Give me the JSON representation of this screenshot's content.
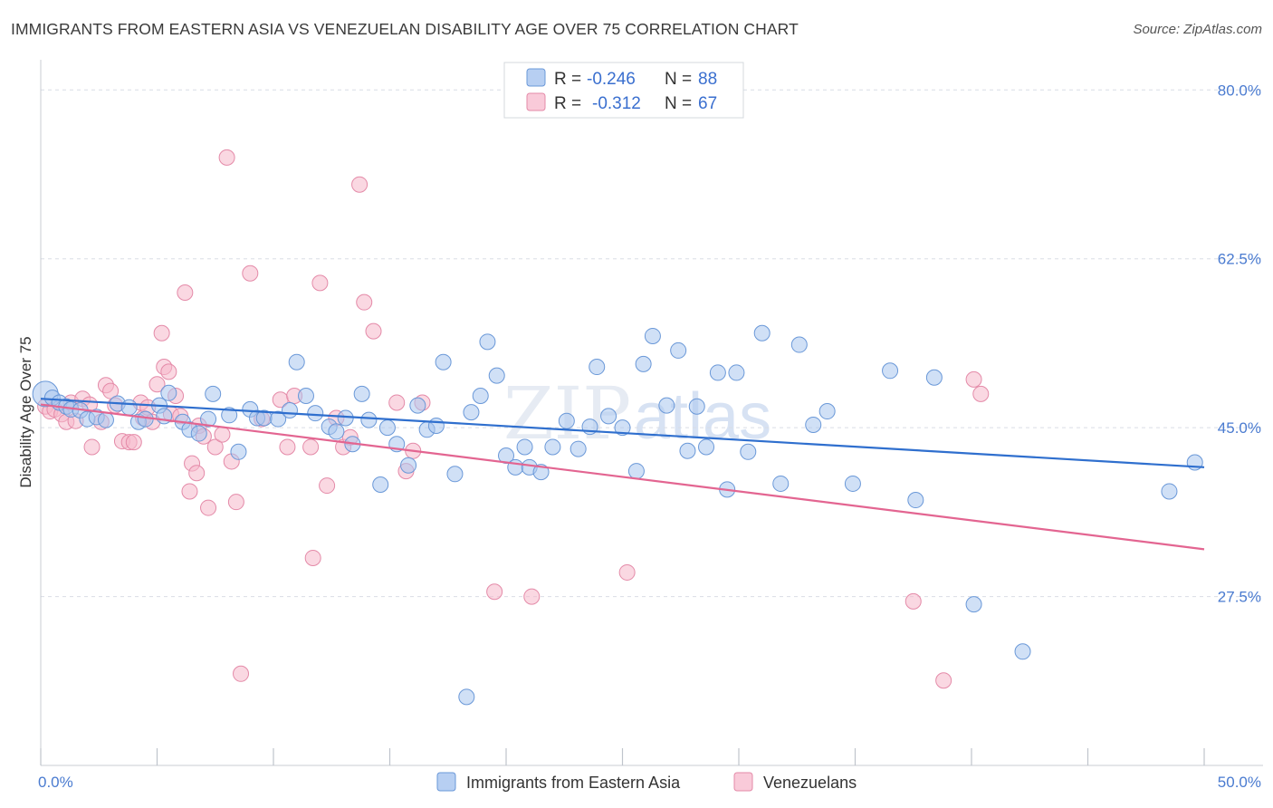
{
  "title": "IMMIGRANTS FROM EASTERN ASIA VS VENEZUELAN DISABILITY AGE OVER 75 CORRELATION CHART",
  "source": "Source: ZipAtlas.com",
  "watermark": {
    "zip": "ZIP",
    "atlas": "atlas"
  },
  "legend": {
    "r_label": "R =",
    "n_label": "N =",
    "series1": {
      "r": "-0.246",
      "n": "88"
    },
    "series2": {
      "r": "-0.312",
      "n": "67"
    }
  },
  "colors": {
    "blue_fill": "#a9c6ee",
    "blue_stroke": "#6a98d8",
    "blue_line": "#2f6fce",
    "pink_fill": "#f6b8cb",
    "pink_stroke": "#e48aa8",
    "pink_line": "#e36591",
    "grid": "#d9dde5",
    "tick_text": "#4a7bd0"
  },
  "chart_data": {
    "type": "scatter",
    "title": "IMMIGRANTS FROM EASTERN ASIA VS VENEZUELAN DISABILITY AGE OVER 75 CORRELATION CHART",
    "xlabel": "",
    "ylabel": "Disability Age Over 75",
    "xlim": [
      0,
      50
    ],
    "ylim": [
      10,
      82
    ],
    "x_tick_labels": [
      "0.0%",
      "50.0%"
    ],
    "y_ticks": [
      27.5,
      45.0,
      62.5,
      80.0
    ],
    "y_tick_labels": [
      "27.5%",
      "45.0%",
      "62.5%",
      "80.0%"
    ],
    "grid": true,
    "legend_position": "top-center and bottom",
    "series": [
      {
        "name": "Immigrants from Eastern Asia",
        "color": "#a9c6ee",
        "trend": {
          "x": [
            0,
            50
          ],
          "y": [
            48.0,
            40.9
          ]
        },
        "points": [
          [
            0.2,
            48.5
          ],
          [
            0.5,
            48.1
          ],
          [
            0.8,
            47.6
          ],
          [
            1.1,
            47.2
          ],
          [
            1.3,
            46.9
          ],
          [
            1.7,
            46.8
          ],
          [
            2.0,
            45.9
          ],
          [
            2.4,
            46.1
          ],
          [
            2.8,
            45.8
          ],
          [
            3.3,
            47.5
          ],
          [
            3.8,
            47.1
          ],
          [
            4.2,
            45.6
          ],
          [
            4.5,
            45.9
          ],
          [
            5.1,
            47.3
          ],
          [
            5.3,
            46.2
          ],
          [
            5.5,
            48.6
          ],
          [
            6.1,
            45.6
          ],
          [
            6.4,
            44.8
          ],
          [
            6.8,
            44.4
          ],
          [
            7.2,
            45.9
          ],
          [
            7.4,
            48.5
          ],
          [
            8.1,
            46.3
          ],
          [
            8.5,
            42.5
          ],
          [
            9.0,
            46.9
          ],
          [
            9.3,
            46.0
          ],
          [
            9.6,
            46.0
          ],
          [
            10.2,
            45.9
          ],
          [
            10.7,
            46.8
          ],
          [
            11.0,
            51.8
          ],
          [
            11.4,
            48.3
          ],
          [
            11.8,
            46.5
          ],
          [
            12.4,
            45.1
          ],
          [
            12.7,
            44.6
          ],
          [
            13.1,
            46.0
          ],
          [
            13.4,
            43.3
          ],
          [
            13.8,
            48.5
          ],
          [
            14.1,
            45.8
          ],
          [
            14.6,
            39.1
          ],
          [
            14.9,
            45.0
          ],
          [
            15.3,
            43.3
          ],
          [
            15.8,
            41.1
          ],
          [
            16.2,
            47.3
          ],
          [
            16.6,
            44.8
          ],
          [
            17.0,
            45.2
          ],
          [
            17.3,
            51.8
          ],
          [
            17.8,
            40.2
          ],
          [
            18.5,
            46.6
          ],
          [
            18.9,
            48.3
          ],
          [
            19.2,
            53.9
          ],
          [
            19.6,
            50.4
          ],
          [
            20.0,
            42.1
          ],
          [
            20.4,
            40.9
          ],
          [
            20.8,
            43.0
          ],
          [
            21.0,
            40.9
          ],
          [
            21.5,
            40.4
          ],
          [
            22.0,
            43.0
          ],
          [
            22.6,
            45.7
          ],
          [
            23.1,
            42.8
          ],
          [
            23.6,
            45.1
          ],
          [
            23.9,
            51.3
          ],
          [
            24.4,
            46.2
          ],
          [
            25.0,
            45.0
          ],
          [
            25.6,
            40.5
          ],
          [
            25.9,
            51.6
          ],
          [
            26.3,
            54.5
          ],
          [
            26.9,
            47.3
          ],
          [
            27.4,
            53.0
          ],
          [
            27.8,
            42.6
          ],
          [
            28.2,
            47.2
          ],
          [
            28.6,
            43.0
          ],
          [
            29.1,
            50.7
          ],
          [
            29.5,
            38.6
          ],
          [
            29.9,
            50.7
          ],
          [
            30.4,
            42.5
          ],
          [
            31.0,
            54.8
          ],
          [
            31.8,
            39.2
          ],
          [
            32.6,
            53.6
          ],
          [
            33.2,
            45.3
          ],
          [
            33.8,
            46.7
          ],
          [
            34.9,
            39.2
          ],
          [
            36.5,
            50.9
          ],
          [
            37.6,
            37.5
          ],
          [
            38.4,
            50.2
          ],
          [
            40.1,
            26.7
          ],
          [
            42.2,
            21.8
          ],
          [
            48.5,
            38.4
          ],
          [
            49.6,
            41.4
          ],
          [
            18.3,
            17.1
          ]
        ]
      },
      {
        "name": "Venezuelans",
        "color": "#f6b8cb",
        "trend": {
          "x": [
            0,
            50
          ],
          "y": [
            47.4,
            32.4
          ]
        },
        "points": [
          [
            0.2,
            47.2
          ],
          [
            0.4,
            46.7
          ],
          [
            0.6,
            46.9
          ],
          [
            0.9,
            46.4
          ],
          [
            1.1,
            45.6
          ],
          [
            1.3,
            47.6
          ],
          [
            1.5,
            45.7
          ],
          [
            1.8,
            48.0
          ],
          [
            2.1,
            47.4
          ],
          [
            2.2,
            43.0
          ],
          [
            2.6,
            45.6
          ],
          [
            2.8,
            49.4
          ],
          [
            3.0,
            48.8
          ],
          [
            3.2,
            47.3
          ],
          [
            3.5,
            43.6
          ],
          [
            3.8,
            43.5
          ],
          [
            4.0,
            43.5
          ],
          [
            4.3,
            47.6
          ],
          [
            4.4,
            46.0
          ],
          [
            4.6,
            47.1
          ],
          [
            4.8,
            45.6
          ],
          [
            5.0,
            49.5
          ],
          [
            5.2,
            54.8
          ],
          [
            5.3,
            51.3
          ],
          [
            5.5,
            50.8
          ],
          [
            5.6,
            46.4
          ],
          [
            5.8,
            48.3
          ],
          [
            6.0,
            46.2
          ],
          [
            6.2,
            59.0
          ],
          [
            6.4,
            38.4
          ],
          [
            6.5,
            41.3
          ],
          [
            6.7,
            40.3
          ],
          [
            6.8,
            45.2
          ],
          [
            7.0,
            44.1
          ],
          [
            7.2,
            36.7
          ],
          [
            7.5,
            43.0
          ],
          [
            7.8,
            44.3
          ],
          [
            8.0,
            73.0
          ],
          [
            8.2,
            41.5
          ],
          [
            8.4,
            37.3
          ],
          [
            8.6,
            19.5
          ],
          [
            9.0,
            61.0
          ],
          [
            9.5,
            45.9
          ],
          [
            10.3,
            47.9
          ],
          [
            10.6,
            43.0
          ],
          [
            10.9,
            48.3
          ],
          [
            11.6,
            43.0
          ],
          [
            11.7,
            31.5
          ],
          [
            12.0,
            60.0
          ],
          [
            12.3,
            39.0
          ],
          [
            12.7,
            46.0
          ],
          [
            13.0,
            43.0
          ],
          [
            13.3,
            44.0
          ],
          [
            13.7,
            70.2
          ],
          [
            13.9,
            58.0
          ],
          [
            14.3,
            55.0
          ],
          [
            15.3,
            47.6
          ],
          [
            15.7,
            40.5
          ],
          [
            16.0,
            42.6
          ],
          [
            16.4,
            47.6
          ],
          [
            19.5,
            28.0
          ],
          [
            21.1,
            27.5
          ],
          [
            25.2,
            30.0
          ],
          [
            37.5,
            27.0
          ],
          [
            38.8,
            18.8
          ],
          [
            40.1,
            50.0
          ],
          [
            40.4,
            48.5
          ]
        ]
      }
    ]
  },
  "bottom_legend": {
    "item1": "Immigrants from Eastern Asia",
    "item2": "Venezuelans"
  }
}
